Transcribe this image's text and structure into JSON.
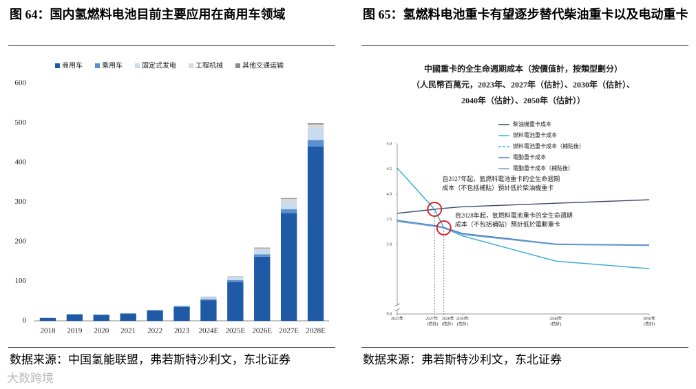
{
  "captions": [
    "图 64：国内氢燃料电池目前主要应用在商用车领域",
    "图 65：氢燃料电池重卡有望逐步替代柴油重卡以及电动重卡"
  ],
  "sources": [
    "数据来源：中国氢能联盟，弗若斯特沙利文，东北证券",
    "数据来源：弗若斯特沙利文，东北证券"
  ],
  "watermark": "大数跨境",
  "chart_data": [
    {
      "type": "bar",
      "stacked": true,
      "categories": [
        "2018",
        "2019",
        "2020",
        "2021",
        "2022",
        "2023",
        "2024E",
        "2025E",
        "2026E",
        "2027E",
        "2028E"
      ],
      "series": [
        {
          "name": "商用车",
          "color": "#1f5aa6",
          "values": [
            7,
            16,
            15,
            18,
            26,
            35,
            52,
            98,
            162,
            272,
            440
          ]
        },
        {
          "name": "乘用车",
          "color": "#5b8fcf",
          "values": [
            0.5,
            1,
            1,
            1,
            1,
            2,
            3,
            5,
            6,
            10,
            17
          ]
        },
        {
          "name": "固定式发电",
          "color": "#c9dcef",
          "values": [
            0,
            0,
            0,
            0,
            1,
            2,
            4,
            6,
            12,
            18,
            30
          ]
        },
        {
          "name": "工程机械",
          "color": "#d9d9d9",
          "values": [
            0,
            0,
            0,
            0,
            0,
            0,
            1,
            2,
            3,
            8,
            9
          ]
        },
        {
          "name": "其他交通运输",
          "color": "#8c8c8c",
          "values": [
            0,
            0,
            0,
            0,
            0,
            0,
            1,
            1,
            2,
            2,
            3
          ]
        }
      ],
      "ylim": [
        0,
        600
      ],
      "yticks": [
        0,
        100,
        200,
        300,
        400,
        500,
        600
      ],
      "grid": false,
      "legend": "top"
    },
    {
      "type": "line",
      "title": [
        "中國重卡的全生命週期成本（按價值計，按類型劃分）",
        "（人民幣百萬元，2023年、2027年（估計）、2030年（估計）、",
        "2040年（估計）、2050年（估計））"
      ],
      "x": [
        2023,
        2027,
        2028,
        2030,
        2040,
        2050
      ],
      "series": [
        {
          "name": "柴油機重卡成本",
          "color": "#3a4a6b",
          "dash": false,
          "values": [
            3.62,
            3.7,
            3.72,
            3.75,
            3.82,
            3.89
          ]
        },
        {
          "name": "燃料電池重卡成本",
          "color": "#3bb0d8",
          "dash": false,
          "values": [
            4.52,
            3.7,
            3.33,
            3.17,
            2.67,
            2.52
          ]
        },
        {
          "name": "燃料電池重卡成本（補貼後）",
          "color": "#3bb0d8",
          "dash": true,
          "values": [
            4.52,
            3.7,
            3.33,
            3.17,
            2.67,
            2.52
          ]
        },
        {
          "name": "電動重卡成本",
          "color": "#4a7fc0",
          "dash": false,
          "values": [
            3.48,
            3.38,
            3.34,
            3.22,
            3.01,
            2.99
          ]
        },
        {
          "name": "電動重卡成本（補貼後）",
          "color": "#6a9fd6",
          "dash": false,
          "values": [
            3.46,
            3.36,
            3.33,
            3.2,
            3.0,
            2.98
          ]
        }
      ],
      "xlim": [
        2023,
        2050
      ],
      "xticks": [
        {
          "value": 2023,
          "label": [
            "2023年"
          ]
        },
        {
          "value": 2027,
          "label": [
            "2027年",
            "(估計)"
          ]
        },
        {
          "value": 2028,
          "label": [
            "2028年",
            "(估計)"
          ]
        },
        {
          "value": 2030,
          "label": [
            "2030年",
            "(估計)"
          ]
        },
        {
          "value": 2040,
          "label": [
            "2040年",
            "(估計)"
          ]
        },
        {
          "value": 2050,
          "label": [
            "2050年",
            "(估計)"
          ]
        }
      ],
      "ylim": [
        0,
        5
      ],
      "axis_break": [
        0,
        2.4
      ],
      "yticks": [
        {
          "value": 0,
          "label": "0.0"
        },
        {
          "value": 3,
          "label": "3.0"
        },
        {
          "value": 3.5,
          "label": "3.5"
        },
        {
          "value": 4,
          "label": "4.0"
        },
        {
          "value": 4.5,
          "label": "4.5"
        },
        {
          "value": 5,
          "label": "5.0"
        }
      ],
      "grid": false,
      "legend": "top-left",
      "annotations": [
        {
          "x": 2027,
          "y": 3.7,
          "text": [
            "自2027年起，氫燃料電池重卡的全生命週期",
            "成本（不包括補貼）預計低於柴油機重卡"
          ]
        },
        {
          "x": 2028,
          "y": 3.33,
          "text": [
            "自2028年起，氫燃料電池重卡的全生命週期",
            "成本（不包括補貼）預計低於電動重卡"
          ]
        }
      ]
    }
  ]
}
